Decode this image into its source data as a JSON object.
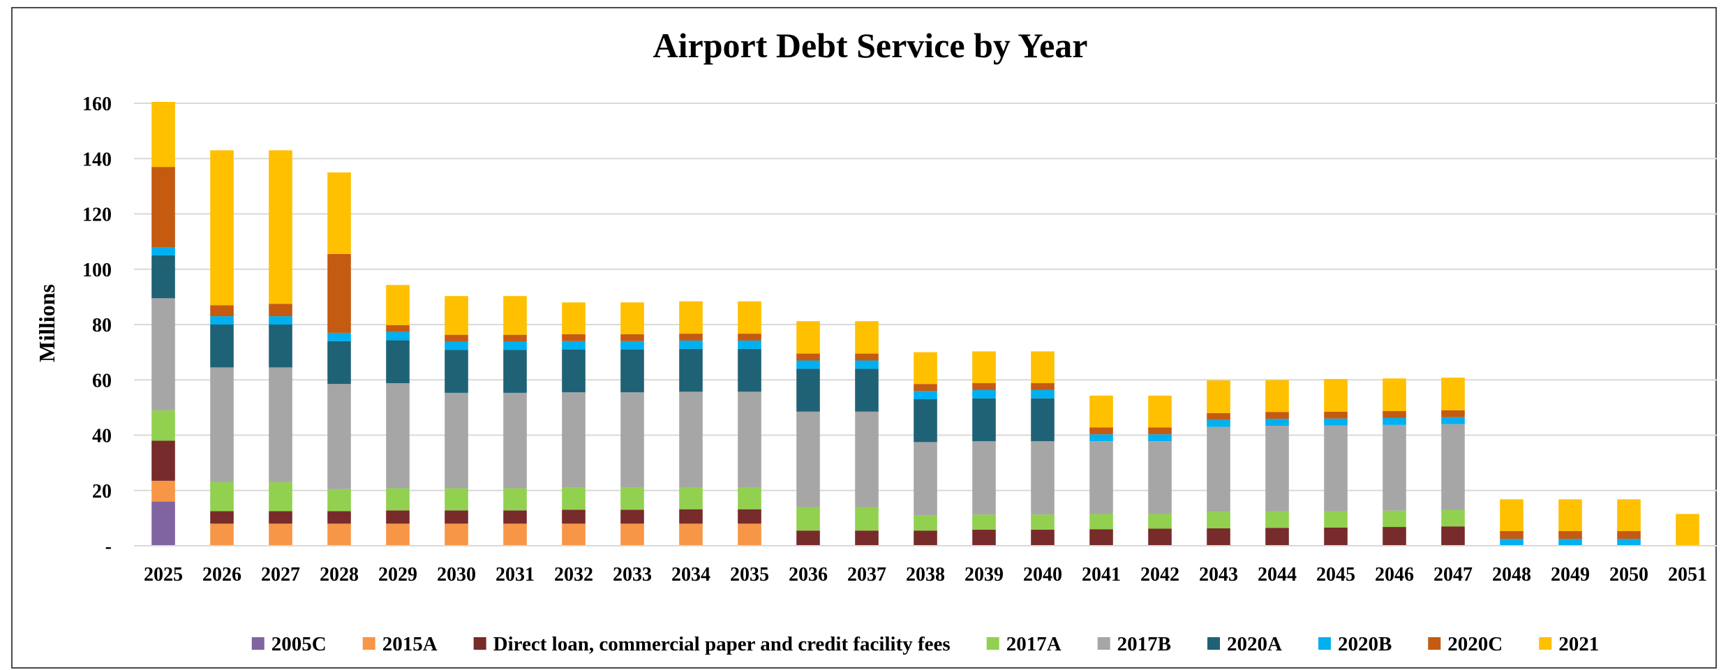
{
  "chart_data": {
    "type": "bar",
    "stacked": true,
    "title": "Airport Debt Service by Year",
    "xlabel": "",
    "ylabel": "Millions",
    "ylim": [
      0,
      160
    ],
    "yticks": [
      "-",
      "20",
      "40",
      "60",
      "80",
      "100",
      "120",
      "140",
      "160"
    ],
    "grid": true,
    "legend_position": "bottom",
    "categories": [
      "2025",
      "2026",
      "2027",
      "2028",
      "2029",
      "2030",
      "2031",
      "2032",
      "2033",
      "2034",
      "2035",
      "2036",
      "2037",
      "2038",
      "2039",
      "2040",
      "2041",
      "2042",
      "2043",
      "2044",
      "2045",
      "2046",
      "2047",
      "2048",
      "2049",
      "2050",
      "2051"
    ],
    "series": [
      {
        "name": "2005C",
        "color": "#8064a2",
        "values": [
          16,
          0,
          0,
          0,
          0,
          0,
          0,
          0,
          0,
          0,
          0,
          0,
          0,
          0,
          0,
          0,
          0,
          0,
          0,
          0,
          0,
          0,
          0,
          0,
          0,
          0,
          0
        ]
      },
      {
        "name": "2015A",
        "color": "#f79646",
        "values": [
          7.5,
          8,
          8,
          8,
          8,
          8,
          8,
          8,
          8,
          8,
          8,
          0,
          0,
          0,
          0,
          0,
          0,
          0,
          0,
          0,
          0,
          0,
          0,
          0,
          0,
          0,
          0
        ]
      },
      {
        "name": "Direct loan, commercial paper and credit facility fees",
        "color": "#772b2b",
        "values": [
          14.5,
          4.5,
          4.5,
          4.5,
          4.8,
          4.8,
          4.8,
          5,
          5,
          5.2,
          5.2,
          5.5,
          5.5,
          5.5,
          5.8,
          5.8,
          6,
          6.2,
          6.3,
          6.5,
          6.6,
          6.8,
          7,
          0,
          0,
          0,
          0
        ]
      },
      {
        "name": "2017A",
        "color": "#92d050",
        "values": [
          11,
          10.5,
          10.5,
          8,
          8,
          8,
          8,
          8,
          8,
          8,
          8,
          8.5,
          8.5,
          5.5,
          5.5,
          5.5,
          5.5,
          5.3,
          6,
          6,
          5.9,
          5.9,
          6,
          0,
          0,
          0,
          0
        ]
      },
      {
        "name": "2017B",
        "color": "#a6a6a6",
        "values": [
          40.5,
          41.5,
          41.5,
          38,
          38,
          34.5,
          34.5,
          34.5,
          34.5,
          34.5,
          34.5,
          34.5,
          34.5,
          26.5,
          26.5,
          26.5,
          26.3,
          26.3,
          30.7,
          30.9,
          31,
          31,
          31,
          0,
          0,
          0,
          0
        ]
      },
      {
        "name": "2020A",
        "color": "#1f6275",
        "values": [
          15.5,
          15.5,
          15.5,
          15.5,
          15.5,
          15.5,
          15.5,
          15.5,
          15.5,
          15.5,
          15.5,
          15.5,
          15.5,
          15.5,
          15.5,
          15.5,
          0,
          0,
          0,
          0,
          0,
          0,
          0,
          0,
          0,
          0,
          0
        ]
      },
      {
        "name": "2020B",
        "color": "#00b0f0",
        "values": [
          3,
          3,
          3,
          3,
          3,
          3,
          3,
          3,
          3,
          3,
          3,
          3,
          3,
          3,
          3,
          3,
          2.5,
          2.5,
          2.5,
          2.5,
          2.5,
          2.5,
          2.5,
          2.5,
          2.5,
          2.5,
          0
        ]
      },
      {
        "name": "2020C",
        "color": "#c55a11",
        "values": [
          29,
          4,
          4.5,
          28.5,
          2.5,
          2.5,
          2.5,
          2.5,
          2.5,
          2.5,
          2.5,
          2.5,
          2.5,
          2.5,
          2.5,
          2.5,
          2.5,
          2.5,
          2.5,
          2.5,
          2.5,
          2.5,
          2.5,
          2.8,
          2.8,
          2.8,
          0
        ]
      },
      {
        "name": "2021",
        "color": "#ffc000",
        "values": [
          23.5,
          56,
          55.5,
          29.5,
          14.5,
          14,
          14,
          11.5,
          11.5,
          11.7,
          11.7,
          11.7,
          11.7,
          11.5,
          11.5,
          11.5,
          11.5,
          11.5,
          11.8,
          11.5,
          11.8,
          11.8,
          11.8,
          11.5,
          11.5,
          11.5,
          11.5
        ]
      }
    ]
  }
}
